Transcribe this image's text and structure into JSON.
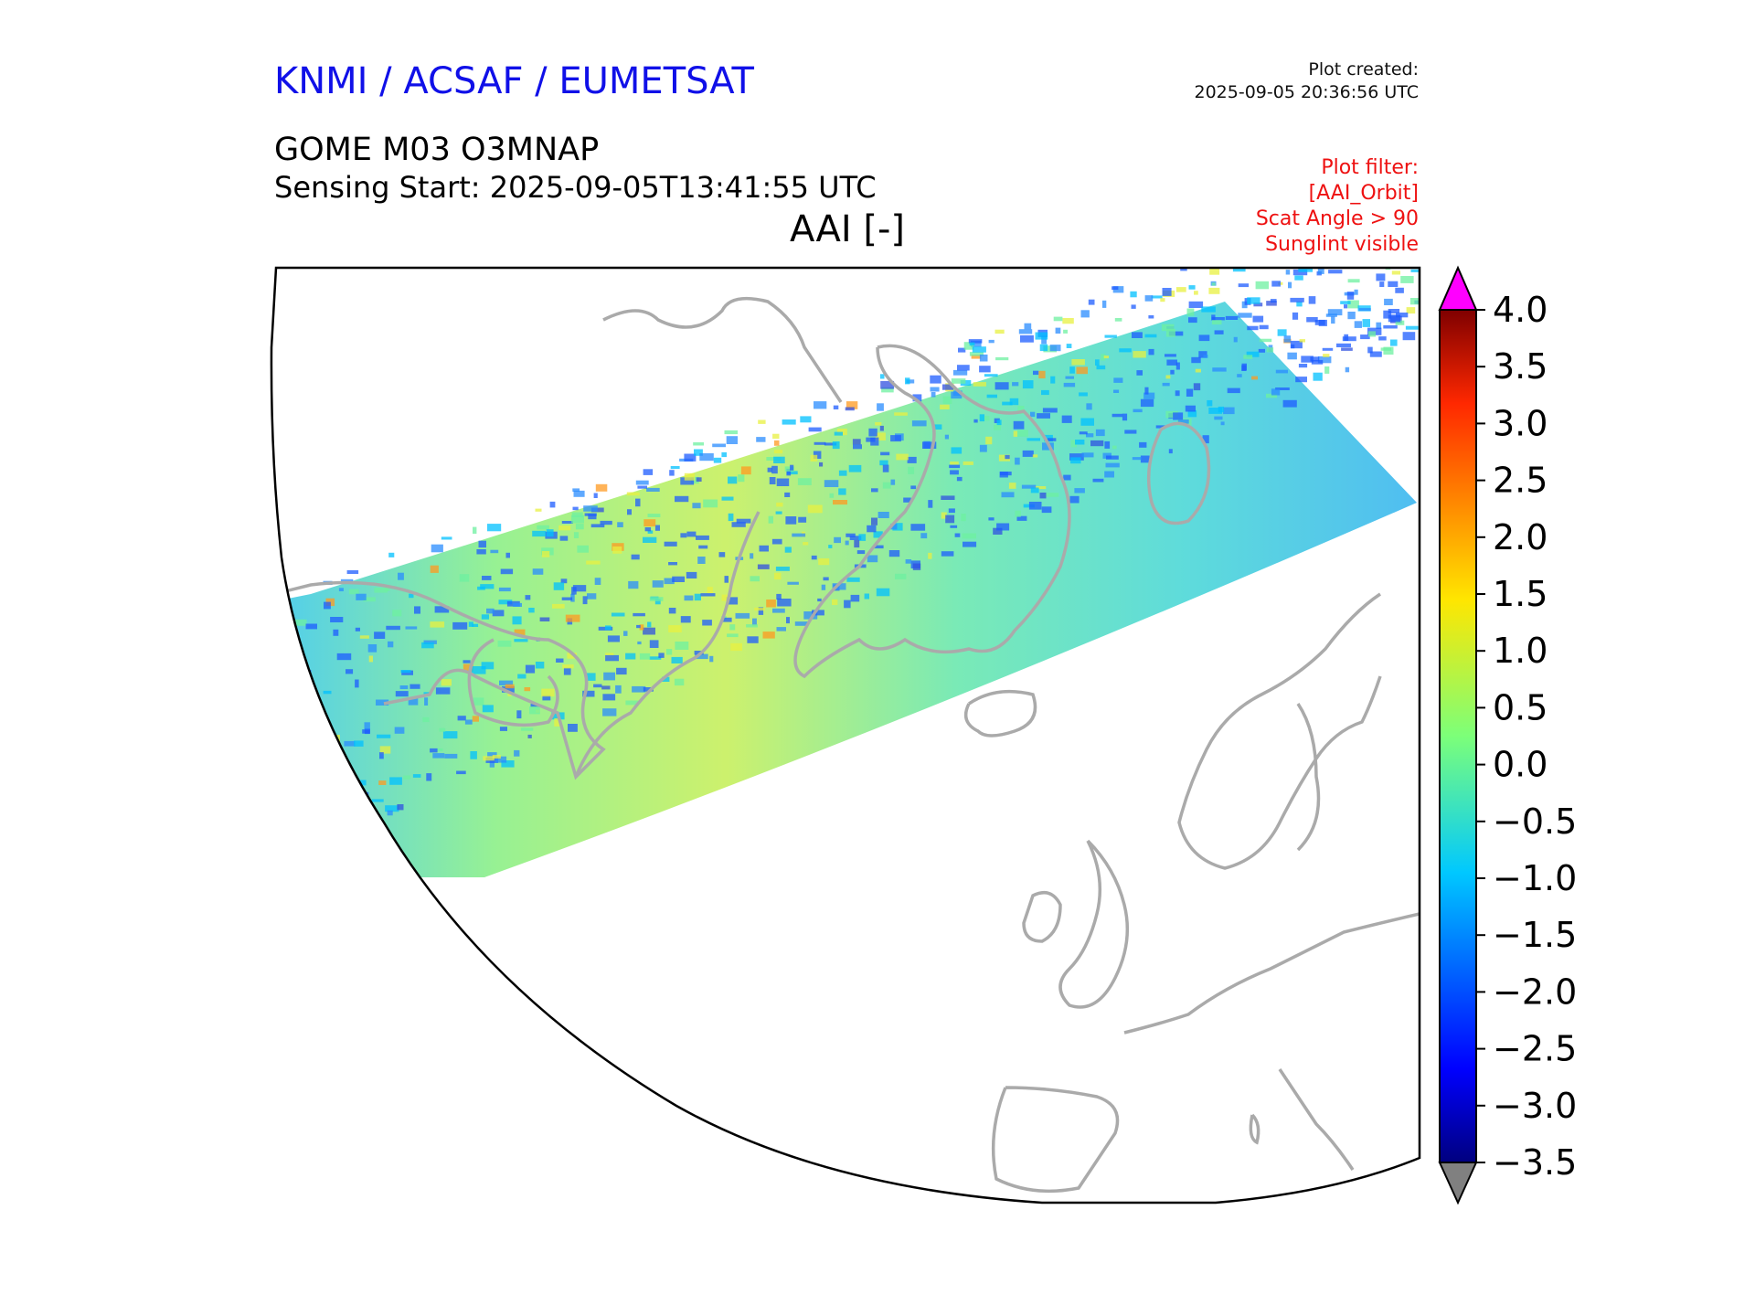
{
  "header": {
    "organisation": "KNMI / ACSAF / EUMETSAT",
    "plot_created_label": "Plot created:",
    "plot_created_time": "2025-09-05 20:36:56 UTC",
    "product": "GOME M03 O3MNAP",
    "sensing_start": "Sensing Start: 2025-09-05T13:41:55 UTC",
    "variable": "AAI [-]"
  },
  "filters": {
    "title": "Plot filter:",
    "items": [
      "[AAI_Orbit]",
      "Scat Angle > 90",
      "Sunglint visible"
    ]
  },
  "colorbar": {
    "min": -3.5,
    "max": 4.0,
    "ticks": [
      4.0,
      3.5,
      3.0,
      2.5,
      2.0,
      1.5,
      1.0,
      0.5,
      0.0,
      -0.5,
      -1.0,
      -1.5,
      -2.0,
      -2.5,
      -3.0,
      -3.5
    ],
    "tick_labels": [
      "4.0",
      "3.5",
      "3.0",
      "2.5",
      "2.0",
      "1.5",
      "1.0",
      "0.5",
      "0.0",
      "−0.5",
      "−1.0",
      "−1.5",
      "−2.0",
      "−2.5",
      "−3.0",
      "−3.5"
    ],
    "over_color": "#ff00ff",
    "under_color": "#808080",
    "colormap": "jet"
  },
  "map": {
    "coastline_color": "#aaaaaa",
    "swath_mean_value": 0.2
  }
}
